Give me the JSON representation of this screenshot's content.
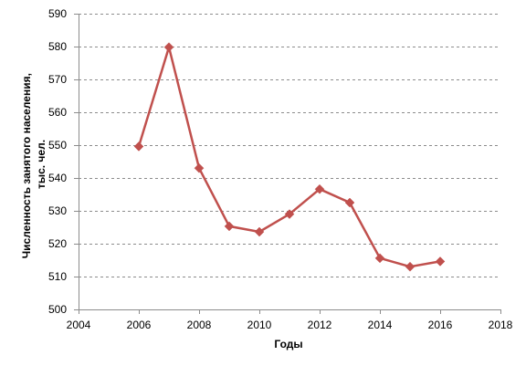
{
  "chart_data": {
    "type": "line",
    "title": "",
    "xlabel": "Годы",
    "ylabel_lines": [
      "Численность занятого населения,",
      "тыс. чел."
    ],
    "xlim": [
      2004,
      2018
    ],
    "ylim": [
      500,
      590
    ],
    "x_ticks": [
      "2004",
      "2006",
      "2008",
      "2010",
      "2012",
      "2014",
      "2016",
      "2018"
    ],
    "y_ticks": [
      "500",
      "510",
      "520",
      "530",
      "540",
      "550",
      "560",
      "570",
      "580",
      "590"
    ],
    "grid": "horizontal-dashed",
    "legend": "none",
    "series": [
      {
        "color": "#C0504D",
        "marker": "diamond",
        "points": [
          {
            "x": 2006,
            "y": 549.6
          },
          {
            "x": 2007,
            "y": 579.8
          },
          {
            "x": 2008,
            "y": 543.0
          },
          {
            "x": 2009,
            "y": 525.3
          },
          {
            "x": 2010,
            "y": 523.6
          },
          {
            "x": 2011,
            "y": 529.0
          },
          {
            "x": 2012,
            "y": 536.6
          },
          {
            "x": 2013,
            "y": 532.5
          },
          {
            "x": 2014,
            "y": 515.6
          },
          {
            "x": 2015,
            "y": 513.0
          },
          {
            "x": 2016,
            "y": 514.6
          }
        ]
      }
    ]
  }
}
